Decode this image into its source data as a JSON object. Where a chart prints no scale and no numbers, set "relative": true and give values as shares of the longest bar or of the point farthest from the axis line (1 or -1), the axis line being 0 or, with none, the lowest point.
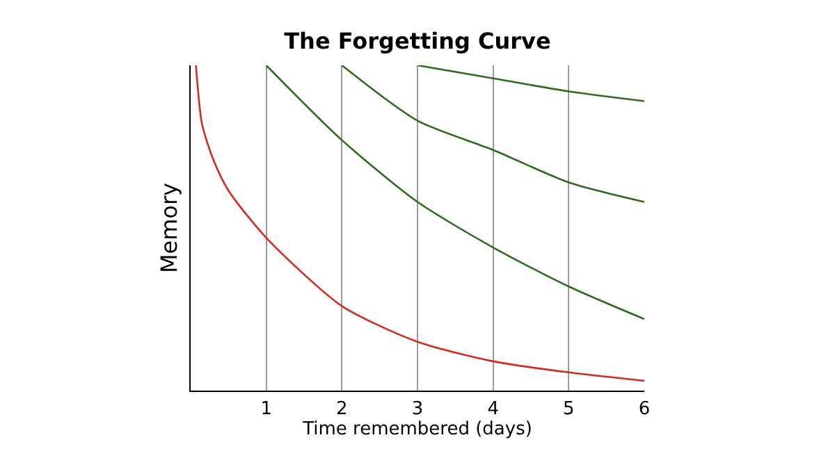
{
  "chart_data": {
    "type": "line",
    "title": "The Forgetting Curve",
    "xlabel": "Time remembered (days)",
    "ylabel": "Memory",
    "relative": true,
    "xlim": [
      0,
      6
    ],
    "xticks": [
      1,
      2,
      3,
      4,
      5,
      6
    ],
    "grid": "x",
    "marker": "none",
    "line_style": "solid",
    "series": [
      {
        "color": "#d42a1e",
        "x": [
          0.07,
          0.15,
          0.3,
          0.5,
          1,
          2,
          3,
          4,
          5,
          6
        ],
        "values": [
          1.0,
          0.82,
          0.71,
          0.615,
          0.47,
          0.26,
          0.15,
          0.09,
          0.056,
          0.03
        ]
      },
      {
        "color": "#2e6b1f",
        "x": [
          1,
          2,
          3,
          4,
          5,
          6
        ],
        "values": [
          1.0,
          0.77,
          0.58,
          0.44,
          0.32,
          0.22
        ]
      },
      {
        "color": "#2e6b1f",
        "x": [
          2,
          3,
          4,
          5,
          6
        ],
        "values": [
          1.0,
          0.83,
          0.74,
          0.64,
          0.58
        ]
      },
      {
        "color": "#2e6b1f",
        "x": [
          3,
          4,
          5,
          6
        ],
        "values": [
          1.0,
          0.96,
          0.92,
          0.89
        ]
      }
    ]
  }
}
